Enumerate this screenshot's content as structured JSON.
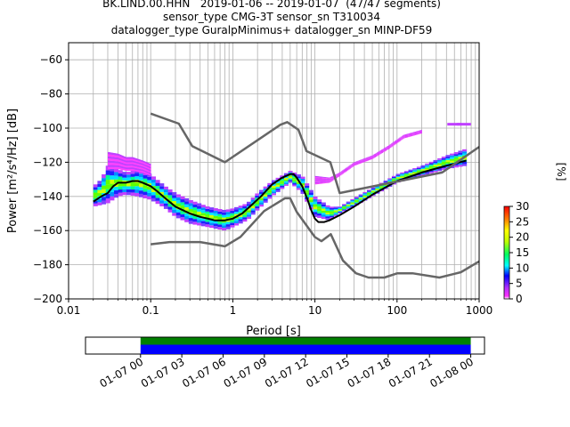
{
  "chart_data": [
    {
      "type": "heatmap",
      "title_lines": [
        "BK.LIND.00.HHN   2019-01-06 -- 2019-01-07  (47/47 segments)",
        "sensor_type CMG-3T sensor_sn T310034",
        "datalogger_type GuralpMinimus+ datalogger_sn MINP-DF59"
      ],
      "xlabel": "Period [s]",
      "ylabel": "Power [m²/s⁴/Hz] [dB]",
      "x_scale": "log",
      "xlim": [
        0.01,
        1000
      ],
      "ylim": [
        -200,
        -50
      ],
      "x_ticks": [
        0.01,
        0.1,
        1,
        10,
        100,
        1000
      ],
      "x_tick_labels": [
        "0.01",
        "0.1",
        "1",
        "10",
        "100",
        "1000"
      ],
      "y_ticks": [
        -200,
        -180,
        -160,
        -140,
        -120,
        -100,
        -80,
        -60
      ],
      "y_tick_labels": [
        "−200",
        "−180",
        "−160",
        "−140",
        "−120",
        "−100",
        "−80",
        "−60"
      ],
      "grid": true,
      "colorbar": {
        "label": "[%]",
        "min": 0,
        "max": 30,
        "ticks": [
          0,
          5,
          10,
          15,
          20,
          25,
          30
        ],
        "tick_labels": [
          "0",
          "5",
          "10",
          "15",
          "20",
          "25",
          "30"
        ]
      },
      "series": [
        {
          "role": "mean",
          "color": "#000000",
          "x": [
            0.02,
            0.025,
            0.03,
            0.035,
            0.04,
            0.05,
            0.06,
            0.07,
            0.08,
            0.1,
            0.12,
            0.15,
            0.2,
            0.3,
            0.4,
            0.5,
            0.6,
            0.8,
            1.0,
            1.3,
            1.7,
            2.2,
            3.0,
            4.0,
            5.0,
            5.5,
            6.0,
            7.0,
            8.0,
            9.0,
            10.0,
            11.0,
            13.0,
            15.0,
            20.0,
            30.0,
            50.0,
            100.0,
            200.0,
            400.0,
            700.0
          ],
          "y": [
            -143,
            -140,
            -138,
            -134,
            -132,
            -132,
            -131,
            -131,
            -132,
            -134,
            -137,
            -141,
            -146,
            -150,
            -152,
            -153,
            -154,
            -154,
            -153,
            -150,
            -145,
            -140,
            -133,
            -129,
            -127,
            -127,
            -129,
            -134,
            -141,
            -148,
            -153,
            -155,
            -155,
            -154,
            -151,
            -146,
            -139,
            -131,
            -126,
            -122,
            -119
          ]
        },
        {
          "role": "noise-model-high",
          "color": "#666666",
          "x": [
            0.1,
            0.22,
            0.32,
            0.8,
            3.8,
            4.6,
            6.3,
            7.9,
            15.4,
            20.0,
            354.8,
            1000.0
          ],
          "y": [
            -91.5,
            -97.4,
            -110.5,
            -120.0,
            -98.0,
            -96.5,
            -101.0,
            -113.5,
            -120.0,
            -138.0,
            -126.0,
            -111.0
          ]
        },
        {
          "role": "noise-model-low",
          "color": "#666666",
          "x": [
            0.1,
            0.17,
            0.4,
            0.8,
            1.24,
            2.4,
            4.3,
            5.0,
            6.0,
            10.0,
            12.0,
            15.6,
            21.9,
            31.6,
            45.0,
            70.0,
            101.0,
            154.0,
            328.0,
            600.0,
            1000.0
          ],
          "y": [
            -168.0,
            -166.7,
            -166.7,
            -169.2,
            -163.7,
            -148.6,
            -141.1,
            -141.1,
            -149.0,
            -163.8,
            -166.2,
            -162.1,
            -177.5,
            -185.0,
            -187.5,
            -187.5,
            -185.0,
            -185.0,
            -187.5,
            -184.4,
            -178.0
          ]
        }
      ],
      "density_bands": [
        {
          "x": [
            0.02,
            0.025,
            0.03,
            0.04,
            0.05,
            0.07,
            0.1,
            0.15,
            0.2,
            0.3,
            0.5,
            0.8,
            1.0,
            1.5,
            2.0,
            3.0,
            5.0,
            7.0,
            10.0,
            15.0,
            20.0,
            30.0,
            50.0,
            100.0,
            200.0,
            400.0,
            700.0
          ],
          "lower": [
            -146,
            -145,
            -144,
            -140,
            -139,
            -140,
            -142,
            -147,
            -152,
            -156,
            -158,
            -160,
            -158,
            -154,
            -148,
            -140,
            -132,
            -138,
            -152,
            -154,
            -150,
            -146,
            -140,
            -132,
            -128,
            -124,
            -122
          ],
          "upper": [
            -134,
            -130,
            -122,
            -124,
            -126,
            -124,
            -127,
            -134,
            -138,
            -142,
            -146,
            -148,
            -147,
            -144,
            -138,
            -131,
            -125,
            -128,
            -140,
            -146,
            -146,
            -141,
            -135,
            -127,
            -122,
            -116,
            -112
          ]
        },
        {
          "x": [
            0.03,
            0.04,
            0.05,
            0.06,
            0.08,
            0.1
          ],
          "lower": [
            -124,
            -124,
            -125,
            -125,
            -126,
            -128
          ],
          "upper": [
            -114,
            -115,
            -117,
            -117,
            -119,
            -121
          ]
        },
        {
          "x": [
            10.0,
            15.0,
            20.0,
            30.0,
            50.0,
            80.0,
            120.0,
            200.0
          ],
          "lower": [
            -133,
            -132,
            -128,
            -122,
            -118,
            -112,
            -106,
            -103
          ],
          "upper": [
            -128,
            -129,
            -126,
            -120,
            -116,
            -110,
            -104,
            -101
          ]
        }
      ],
      "outliers": [
        {
          "x": 500.0,
          "y": -98
        },
        {
          "x": 650.0,
          "y": -98
        }
      ]
    },
    {
      "type": "timeline",
      "x_tick_labels": [
        "01-07 00",
        "01-07 03",
        "01-07 06",
        "01-07 09",
        "01-07 12",
        "01-07 15",
        "01-07 18",
        "01-07 21",
        "01-08 00"
      ],
      "xlim": [
        "01-06 20",
        "01-08 01"
      ],
      "coverage": {
        "start": "01-07 00",
        "end": "01-08 00"
      },
      "bars": [
        {
          "color": "#008000",
          "start": "01-07 00",
          "end": "01-08 00"
        },
        {
          "color": "#0000ff",
          "start": "01-07 00",
          "end": "01-08 00"
        }
      ]
    }
  ]
}
